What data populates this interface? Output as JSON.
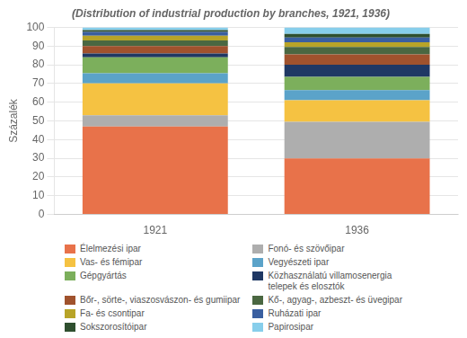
{
  "chart_data": {
    "type": "bar",
    "title": "(Distribution of industrial production by branches, 1921, 1936)",
    "ylabel": "Százalék",
    "categories": [
      "1921",
      "1936"
    ],
    "series": [
      {
        "name": "Élelmezési ipar",
        "color": "#E8724A",
        "values": [
          47.0,
          30.0
        ]
      },
      {
        "name": "Fonó- és szövőipar",
        "color": "#AEAEAE",
        "values": [
          6.0,
          19.5
        ]
      },
      {
        "name": "Vas- és fémipar",
        "color": "#F5C242",
        "values": [
          17.0,
          11.5
        ]
      },
      {
        "name": "Vegyészeti ipar",
        "color": "#5BA3C9",
        "values": [
          5.5,
          5.5
        ]
      },
      {
        "name": "Gépgyártás",
        "color": "#7CAF5C",
        "values": [
          8.5,
          7.0
        ]
      },
      {
        "name": "Közhasználatú villamosenergia\ntelepek és elosztók",
        "color": "#1F3864",
        "values": [
          2.0,
          6.5
        ]
      },
      {
        "name": "Bőr-, sörte-, viaszosvászon- és gumiipar",
        "color": "#A0522D",
        "values": [
          4.0,
          5.5
        ]
      },
      {
        "name": "Kő-, agyag-, azbeszt- és üvegipar",
        "color": "#4A6741",
        "values": [
          3.0,
          4.0
        ]
      },
      {
        "name": "Fa- és csontipar",
        "color": "#B8A428",
        "values": [
          2.5,
          2.5
        ]
      },
      {
        "name": "Ruházati ipar",
        "color": "#3A5FA0",
        "values": [
          2.0,
          2.5
        ]
      },
      {
        "name": "Sokszorosítóipar",
        "color": "#2F4F2F",
        "values": [
          1.0,
          2.0
        ]
      },
      {
        "name": "Papirosipar",
        "color": "#87CEEB",
        "values": [
          1.5,
          3.5
        ]
      }
    ],
    "stacked": true,
    "ylim": [
      0,
      100
    ],
    "yticks": [
      0,
      10,
      20,
      30,
      40,
      50,
      60,
      70,
      80,
      90,
      100
    ],
    "grid": true,
    "legend": "bottom"
  }
}
